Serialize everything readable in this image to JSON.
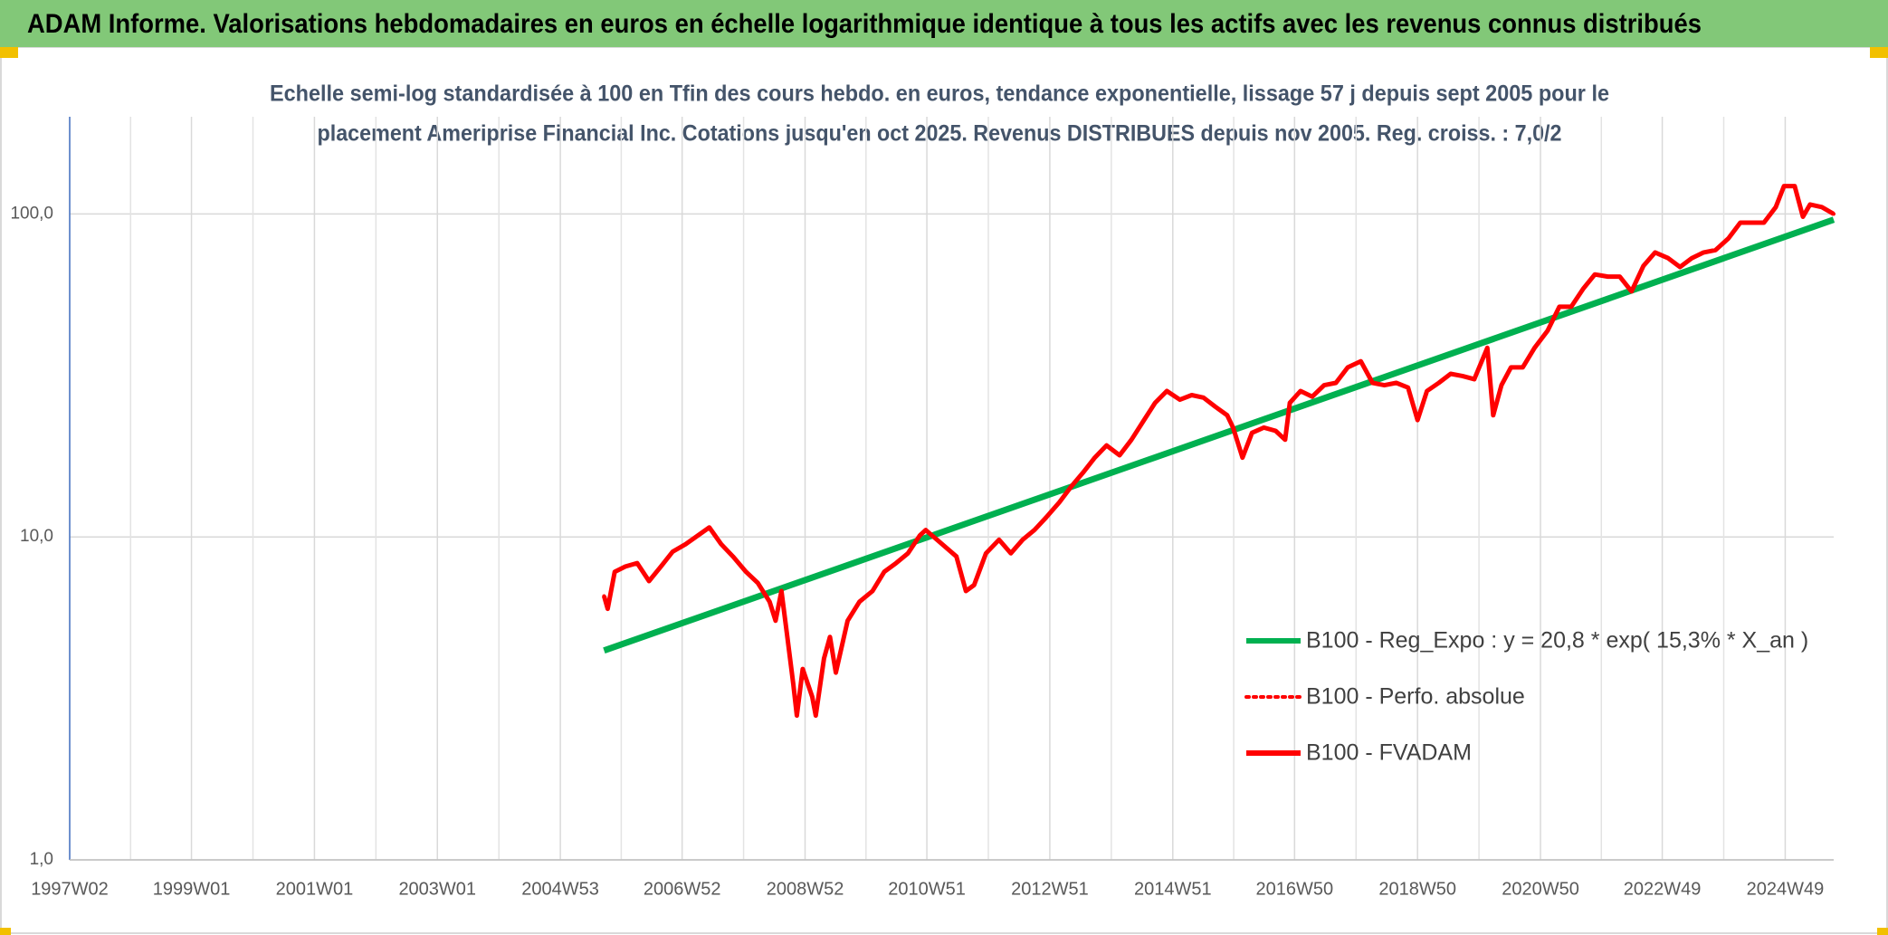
{
  "chart_data": {
    "type": "line",
    "title": "ADAM Informe. Valorisations hebdomadaires en euros en échelle logarithmique identique à tous les actifs avec les revenus connus distribués",
    "subtitle": [
      "Echelle semi-log standardisée à 100 en Tfin des cours hebdo. en euros, tendance exponentielle, lissage 57 j depuis sept 2005 pour le",
      "placement Ameriprise Financial Inc. Cotations jusqu'en oct 2025. Revenus DISTRIBUES depuis nov 2005. Reg. croiss. : 7,0/2"
    ],
    "log_scale": true,
    "grid": true,
    "legend": "right",
    "ylim": [
      1,
      200
    ],
    "yticks": [
      {
        "value": 1,
        "label": "1,0"
      },
      {
        "value": 10,
        "label": "10,0"
      },
      {
        "value": 100,
        "label": "100,0"
      }
    ],
    "xlim": [
      "1997W02",
      "2025W38"
    ],
    "xticks": [
      "1997W02",
      "1999W01",
      "2001W01",
      "2003W01",
      "2004W53",
      "2006W52",
      "2008W52",
      "2010W51",
      "2012W51",
      "2014W51",
      "2016W50",
      "2018W50",
      "2020W50",
      "2022W49",
      "2024W49"
    ],
    "series": [
      {
        "name": "B100 - Reg_Expo : y = 20,8 * exp( 15,3% *  X_an )",
        "color": "#00b050",
        "style": "solid",
        "x": [
          "2005W38",
          "2025W38"
        ],
        "values": [
          4.45,
          96
        ]
      },
      {
        "name": "B100 - Perfo. absolue",
        "color": "#ff0000",
        "style": "dotted",
        "x": [
          "2005W38",
          "2005W41",
          "2005W47",
          "2006W04",
          "2006W14",
          "2006W24",
          "2006W34",
          "2006W44",
          "2007W03",
          "2007W23",
          "2007W33",
          "2007W43",
          "2008W02",
          "2008W12",
          "2008W22",
          "2008W27",
          "2008W32",
          "2008W37",
          "2008W42",
          "2008W45",
          "2008W50",
          "2009W06",
          "2009W09",
          "2009W16",
          "2009W21",
          "2009W26",
          "2009W36",
          "2009W46",
          "2010W05",
          "2010W15",
          "2010W25",
          "2010W35",
          "2010W45",
          "2010W50",
          "2011W09",
          "2011W24",
          "2011W32",
          "2011W39",
          "2011W49",
          "2012W08",
          "2012W18",
          "2012W28",
          "2012W38",
          "2012W48",
          "2013W07",
          "2013W17",
          "2013W27",
          "2013W37",
          "2013W47",
          "2014W06",
          "2014W16",
          "2014W26",
          "2014W36",
          "2014W46",
          "2015W05",
          "2015W15",
          "2015W25",
          "2015W35",
          "2015W45",
          "2015W50",
          "2016W06",
          "2016W14",
          "2016W24",
          "2016W34",
          "2016W42",
          "2016W46",
          "2017W03",
          "2017W13",
          "2017W23",
          "2017W33",
          "2017W43",
          "2018W02",
          "2018W12",
          "2018W22",
          "2018W32",
          "2018W42",
          "2018W50",
          "2019W06",
          "2019W16",
          "2019W26",
          "2019W36",
          "2019W46",
          "2020W05",
          "2020W10",
          "2020W17",
          "2020W25",
          "2020W35",
          "2020W45",
          "2021W04",
          "2021W14",
          "2021W24",
          "2021W34",
          "2021W44",
          "2022W03",
          "2022W13",
          "2022W23",
          "2022W33",
          "2022W43",
          "2023W02",
          "2023W12",
          "2023W22",
          "2023W32",
          "2023W42",
          "2024W01",
          "2024W11",
          "2024W21",
          "2024W31",
          "2024W41",
          "2024W48",
          "2025W05",
          "2025W12",
          "2025W18",
          "2025W28",
          "2025W38"
        ],
        "values": [
          6.56,
          5.99,
          7.8,
          8.1,
          8.3,
          7.3,
          8.1,
          9.0,
          9.5,
          10.7,
          9.5,
          8.7,
          7.8,
          7.2,
          6.3,
          5.5,
          6.8,
          4.9,
          3.5,
          2.8,
          3.9,
          3.2,
          2.8,
          4.2,
          4.9,
          3.8,
          5.5,
          6.3,
          6.8,
          7.8,
          8.3,
          8.9,
          10.1,
          10.5,
          9.7,
          8.7,
          6.8,
          7.1,
          8.9,
          9.8,
          8.9,
          9.8,
          10.5,
          11.5,
          12.8,
          14.3,
          15.8,
          17.6,
          19.2,
          17.9,
          20,
          22.8,
          26,
          28.3,
          26.6,
          27.5,
          27,
          25.3,
          23.8,
          21.8,
          17.6,
          21,
          21.8,
          21.3,
          20,
          26,
          28.3,
          27.2,
          29.5,
          30,
          33.5,
          35,
          30,
          29.5,
          30,
          29,
          23,
          28.3,
          30,
          32,
          31.5,
          30.8,
          38.5,
          23.8,
          29.5,
          33.5,
          33.5,
          38.5,
          43.5,
          51.6,
          51.6,
          58.6,
          65,
          64,
          64,
          57.6,
          69,
          76,
          73,
          68.5,
          73,
          76,
          77.3,
          84,
          94,
          94,
          94,
          105,
          122,
          122,
          98,
          107,
          105,
          100
        ]
      },
      {
        "name": "B100 - FVADAM",
        "color": "#ff0000",
        "style": "solid",
        "x": [
          "2005W38",
          "2005W41",
          "2005W47",
          "2006W04",
          "2006W14",
          "2006W24",
          "2006W34",
          "2006W44",
          "2007W03",
          "2007W23",
          "2007W33",
          "2007W43",
          "2008W02",
          "2008W12",
          "2008W22",
          "2008W27",
          "2008W32",
          "2008W37",
          "2008W42",
          "2008W45",
          "2008W50",
          "2009W06",
          "2009W09",
          "2009W16",
          "2009W21",
          "2009W26",
          "2009W36",
          "2009W46",
          "2010W05",
          "2010W15",
          "2010W25",
          "2010W35",
          "2010W45",
          "2010W50",
          "2011W09",
          "2011W24",
          "2011W32",
          "2011W39",
          "2011W49",
          "2012W08",
          "2012W18",
          "2012W28",
          "2012W38",
          "2012W48",
          "2013W07",
          "2013W17",
          "2013W27",
          "2013W37",
          "2013W47",
          "2014W06",
          "2014W16",
          "2014W26",
          "2014W36",
          "2014W46",
          "2015W05",
          "2015W15",
          "2015W25",
          "2015W35",
          "2015W45",
          "2015W50",
          "2016W06",
          "2016W14",
          "2016W24",
          "2016W34",
          "2016W42",
          "2016W46",
          "2017W03",
          "2017W13",
          "2017W23",
          "2017W33",
          "2017W43",
          "2018W02",
          "2018W12",
          "2018W22",
          "2018W32",
          "2018W42",
          "2018W50",
          "2019W06",
          "2019W16",
          "2019W26",
          "2019W36",
          "2019W46",
          "2020W05",
          "2020W10",
          "2020W17",
          "2020W25",
          "2020W35",
          "2020W45",
          "2021W04",
          "2021W14",
          "2021W24",
          "2021W34",
          "2021W44",
          "2022W03",
          "2022W13",
          "2022W23",
          "2022W33",
          "2022W43",
          "2023W02",
          "2023W12",
          "2023W22",
          "2023W32",
          "2023W42",
          "2024W01",
          "2024W11",
          "2024W21",
          "2024W31",
          "2024W41",
          "2024W48",
          "2025W05",
          "2025W12",
          "2025W18",
          "2025W28",
          "2025W38"
        ],
        "values": [
          6.56,
          5.99,
          7.8,
          8.1,
          8.3,
          7.3,
          8.1,
          9.0,
          9.5,
          10.7,
          9.5,
          8.7,
          7.8,
          7.2,
          6.3,
          5.5,
          6.8,
          4.9,
          3.5,
          2.8,
          3.9,
          3.2,
          2.8,
          4.2,
          4.9,
          3.8,
          5.5,
          6.3,
          6.8,
          7.8,
          8.3,
          8.9,
          10.1,
          10.5,
          9.7,
          8.7,
          6.8,
          7.1,
          8.9,
          9.8,
          8.9,
          9.8,
          10.5,
          11.5,
          12.8,
          14.3,
          15.8,
          17.6,
          19.2,
          17.9,
          20,
          22.8,
          26,
          28.3,
          26.6,
          27.5,
          27,
          25.3,
          23.8,
          21.8,
          17.6,
          21,
          21.8,
          21.3,
          20,
          26,
          28.3,
          27.2,
          29.5,
          30,
          33.5,
          35,
          30,
          29.5,
          30,
          29,
          23,
          28.3,
          30,
          32,
          31.5,
          30.8,
          38.5,
          23.8,
          29.5,
          33.5,
          33.5,
          38.5,
          43.5,
          51.6,
          51.6,
          58.6,
          65,
          64,
          64,
          57.6,
          69,
          76,
          73,
          68.5,
          73,
          76,
          77.3,
          84,
          94,
          94,
          94,
          105,
          122,
          122,
          98,
          107,
          105,
          100
        ]
      }
    ]
  }
}
